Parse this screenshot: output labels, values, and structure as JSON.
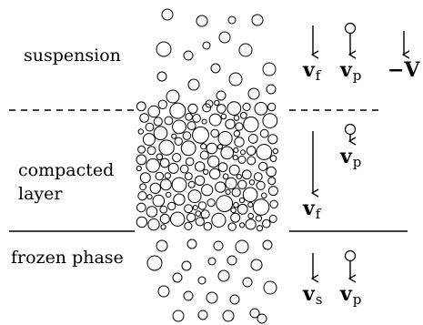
{
  "regions": {
    "suspension": "suspension",
    "compacted_line1": "compacted",
    "compacted_line2": "layer",
    "frozen": "frozen phase"
  },
  "velocities": {
    "suspension": [
      {
        "base": "v",
        "sub": "f"
      },
      {
        "base": "v",
        "sub": "p"
      },
      {
        "base": "−V",
        "sub": ""
      }
    ],
    "compacted": [
      {
        "base": "v",
        "sub": "p"
      },
      {
        "base": "v",
        "sub": "f"
      }
    ],
    "frozen": [
      {
        "base": "v",
        "sub": "s"
      },
      {
        "base": "v",
        "sub": "p"
      }
    ]
  }
}
